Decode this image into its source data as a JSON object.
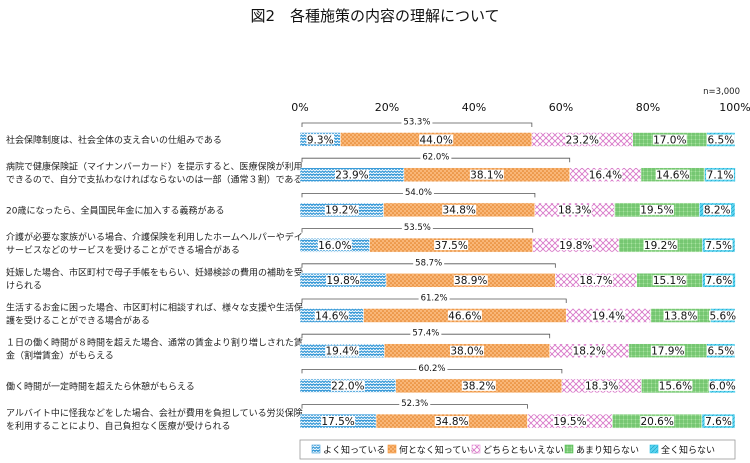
{
  "chart_data": {
    "type": "bar",
    "orientation": "horizontal",
    "stacked": true,
    "title": "図2　各種施策の内容の理解について",
    "note": "n=3,000",
    "xlim": [
      0,
      100
    ],
    "x_ticks": [
      "0%",
      "20%",
      "40%",
      "60%",
      "80%",
      "100%"
    ],
    "categories": [
      [
        "社会保障制度は、社会全体の支え合いの仕組みである"
      ],
      [
        "病院で健康保険証（マイナンバーカード）を提示すると、医療保険が利用",
        "できるので、自分で支払わなければならないのは一部（通常３割）である"
      ],
      [
        "20歳になったら、全員国民年金に加入する義務がある"
      ],
      [
        "介護が必要な家族がいる場合、介護保険を利用したホームヘルパーやデイ",
        "サービスなどのサービスを受けることができる場合がある"
      ],
      [
        "妊娠した場合、市区町村で母子手帳をもらい、妊婦検診の費用の補助を受",
        "けられる"
      ],
      [
        "生活するお金に困った場合、市区町村に相談すれば、様々な支援や生活保",
        "護を受けることができる場合がある"
      ],
      [
        "１日の働く時間が８時間を超えた場合、通常の賃金より割り増しされた賃",
        "金（割増賃金）がもらえる"
      ],
      [
        "働く時間が一定時間を超えたら休憩がもらえる"
      ],
      [
        "アルバイト中に怪我などをした場合、会社が費用を負担している労災保険",
        "を利用することにより、自己負担なく医療が受けられる"
      ]
    ],
    "series": [
      {
        "name": "よく知っている",
        "color": "#3a9bd8",
        "values": [
          9.3,
          23.9,
          19.2,
          16.0,
          19.8,
          14.6,
          19.4,
          22.0,
          17.5
        ]
      },
      {
        "name": "何となく知っている",
        "color": "#f79a3e",
        "values": [
          44.0,
          38.1,
          34.8,
          37.5,
          38.9,
          46.6,
          38.0,
          38.2,
          34.8
        ]
      },
      {
        "name": "どちらともいえない",
        "color": "#e88fd8",
        "values": [
          23.2,
          16.4,
          18.3,
          19.8,
          18.7,
          19.4,
          18.2,
          18.3,
          19.5
        ]
      },
      {
        "name": "あまり知らない",
        "color": "#5cc85c",
        "values": [
          17.0,
          14.6,
          19.5,
          19.2,
          15.1,
          13.8,
          17.9,
          15.6,
          20.6
        ]
      },
      {
        "name": "全く知らない",
        "color": "#2ec4e6",
        "values": [
          6.5,
          7.1,
          8.2,
          7.5,
          7.6,
          5.6,
          6.5,
          6.0,
          7.6
        ]
      }
    ],
    "data_labels": [
      [
        "9.3%",
        "44.0%",
        "23.2%",
        "17.0%",
        "6.5%"
      ],
      [
        "23.9%",
        "38.1%",
        "16.4%",
        "14.6%",
        "7.1%"
      ],
      [
        "19.2%",
        "34.8%",
        "18.3%",
        "19.5%",
        "8.2%"
      ],
      [
        "16.0%",
        "37.5%",
        "19.8%",
        "19.2%",
        "7.5%"
      ],
      [
        "19.8%",
        "38.9%",
        "18.7%",
        "15.1%",
        "7.6%"
      ],
      [
        "14.6%",
        "46.6%",
        "19.4%",
        "13.8%",
        "5.6%"
      ],
      [
        "19.4%",
        "38.0%",
        "18.2%",
        "17.9%",
        "6.5%"
      ],
      [
        "22.0%",
        "38.2%",
        "18.3%",
        "15.6%",
        "6.0%"
      ],
      [
        "17.5%",
        "34.8%",
        "19.5%",
        "20.6%",
        "7.6%"
      ]
    ],
    "combined_values": [
      53.3,
      62.0,
      54.0,
      53.5,
      58.7,
      61.2,
      57.4,
      60.2,
      52.3
    ],
    "combined_labels": [
      "53.3%",
      "62.0%",
      "54.0%",
      "53.5%",
      "58.7%",
      "61.2%",
      "57.4%",
      "60.2%",
      "52.3%"
    ],
    "legend_position": "bottom",
    "grid": false
  }
}
